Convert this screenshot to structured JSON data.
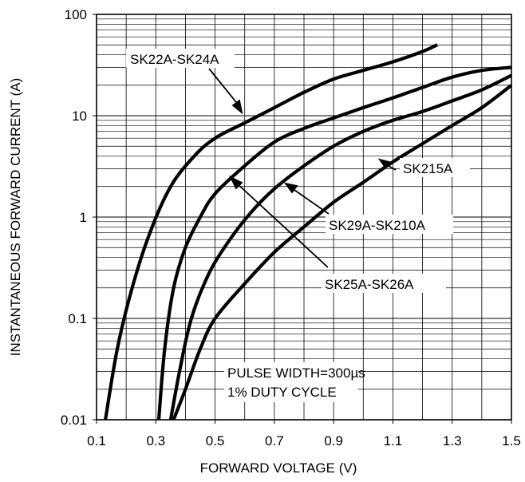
{
  "chart_data": {
    "type": "line",
    "title": "",
    "xlabel": "FORWARD VOLTAGE (V)",
    "ylabel": "INSTANTANEOUS FORWARD CURRENT (A)",
    "xlim": [
      0.1,
      1.5
    ],
    "ylim": [
      0.01,
      100
    ],
    "yscale": "log",
    "grid": true,
    "x_ticks": [
      "0.1",
      "0.3",
      "0.5",
      "0.7",
      "0.9",
      "1.1",
      "1.3",
      "1.5"
    ],
    "y_ticks": [
      "0.01",
      "0.1",
      "1",
      "10",
      "100"
    ],
    "note": [
      "PULSE WIDTH=300µs",
      "1% DUTY CYCLE"
    ],
    "series": [
      {
        "name": "SK22A-SK24A",
        "points": [
          [
            0.13,
            0.01
          ],
          [
            0.17,
            0.05
          ],
          [
            0.22,
            0.2
          ],
          [
            0.28,
            0.7
          ],
          [
            0.35,
            2.0
          ],
          [
            0.43,
            4.0
          ],
          [
            0.5,
            6.0
          ],
          [
            0.6,
            8.5
          ],
          [
            0.7,
            12.0
          ],
          [
            0.8,
            17.0
          ],
          [
            0.9,
            23.0
          ],
          [
            1.0,
            28.0
          ],
          [
            1.1,
            34.0
          ],
          [
            1.2,
            43.0
          ],
          [
            1.25,
            50.0
          ]
        ]
      },
      {
        "name": "SK25A-SK26A",
        "points": [
          [
            0.31,
            0.01
          ],
          [
            0.33,
            0.05
          ],
          [
            0.36,
            0.2
          ],
          [
            0.4,
            0.5
          ],
          [
            0.45,
            1.0
          ],
          [
            0.5,
            1.7
          ],
          [
            0.6,
            3.2
          ],
          [
            0.7,
            5.5
          ],
          [
            0.8,
            7.5
          ],
          [
            0.9,
            9.5
          ],
          [
            1.0,
            12.0
          ],
          [
            1.1,
            15.0
          ],
          [
            1.2,
            19.0
          ],
          [
            1.3,
            24.0
          ],
          [
            1.4,
            28.0
          ],
          [
            1.5,
            30.0
          ]
        ]
      },
      {
        "name": "SK29A-SK210A",
        "points": [
          [
            0.35,
            0.01
          ],
          [
            0.38,
            0.03
          ],
          [
            0.42,
            0.1
          ],
          [
            0.48,
            0.28
          ],
          [
            0.55,
            0.6
          ],
          [
            0.62,
            1.1
          ],
          [
            0.7,
            1.9
          ],
          [
            0.8,
            3.2
          ],
          [
            0.9,
            5.0
          ],
          [
            1.0,
            7.0
          ],
          [
            1.1,
            9.0
          ],
          [
            1.2,
            11.0
          ],
          [
            1.3,
            14.0
          ],
          [
            1.4,
            18.0
          ],
          [
            1.5,
            25.0
          ]
        ]
      },
      {
        "name": "SK215A",
        "points": [
          [
            0.36,
            0.01
          ],
          [
            0.4,
            0.02
          ],
          [
            0.45,
            0.05
          ],
          [
            0.5,
            0.1
          ],
          [
            0.6,
            0.22
          ],
          [
            0.7,
            0.45
          ],
          [
            0.8,
            0.8
          ],
          [
            0.9,
            1.4
          ],
          [
            1.0,
            2.2
          ],
          [
            1.1,
            3.5
          ],
          [
            1.2,
            5.3
          ],
          [
            1.3,
            8.0
          ],
          [
            1.4,
            12.0
          ],
          [
            1.5,
            20.0
          ]
        ]
      }
    ]
  }
}
